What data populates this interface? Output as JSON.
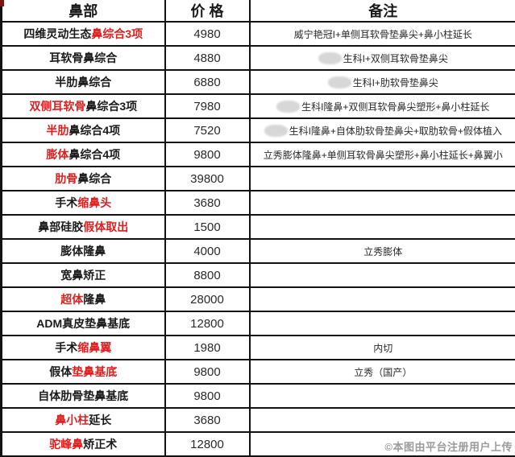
{
  "colors": {
    "accent_red": "#dd1f1f",
    "text_black": "#1a1a1a",
    "border_black": "#121212",
    "censor_gray": "#d7d7d7",
    "watermark_gray": "#9b9b9b"
  },
  "watermark_text": "©本图由平台注册用户上传",
  "table": {
    "headers": {
      "col1": "鼻部",
      "col2": "价 格",
      "col3": "备注"
    },
    "rows": [
      {
        "name_segments": [
          {
            "text": "四维灵动生态",
            "red": false
          },
          {
            "text": "鼻综合3项",
            "red": true
          }
        ],
        "price": "4980",
        "remark": "威宁艳冠I+单侧耳软骨垫鼻尖+鼻小柱延长",
        "remark_censored": false
      },
      {
        "name_segments": [
          {
            "text": "耳软骨鼻综合",
            "red": false
          }
        ],
        "price": "4880",
        "remark": "生科I+双侧耳软骨垫鼻尖",
        "remark_censored": true
      },
      {
        "name_segments": [
          {
            "text": "半肋鼻综合",
            "red": false
          }
        ],
        "price": "6880",
        "remark": "生科I+肋软骨垫鼻尖",
        "remark_censored": true
      },
      {
        "name_segments": [
          {
            "text": "双侧耳软骨",
            "red": true
          },
          {
            "text": "鼻综合3项",
            "red": false
          }
        ],
        "price": "7980",
        "remark": "生科I隆鼻+双侧耳软骨鼻尖塑形+鼻小柱延长",
        "remark_censored": true
      },
      {
        "name_segments": [
          {
            "text": "半肋",
            "red": true
          },
          {
            "text": "鼻综合4项",
            "red": false
          }
        ],
        "price": "7520",
        "remark": "生科I隆鼻+自体肋软骨垫鼻尖+取肋软骨+假体植入",
        "remark_censored": true
      },
      {
        "name_segments": [
          {
            "text": "膨体",
            "red": true
          },
          {
            "text": "鼻综合4项",
            "red": false
          }
        ],
        "price": "9800",
        "remark": "立秀膨体隆鼻+单侧耳软骨鼻尖塑形+鼻小柱延长+鼻翼小",
        "remark_censored": false
      },
      {
        "name_segments": [
          {
            "text": "肋骨",
            "red": true
          },
          {
            "text": "鼻综合",
            "red": false
          }
        ],
        "price": "39800",
        "remark": "",
        "remark_censored": false
      },
      {
        "name_segments": [
          {
            "text": "手术",
            "red": false
          },
          {
            "text": "缩鼻头",
            "red": true
          }
        ],
        "price": "3680",
        "remark": "",
        "remark_censored": false
      },
      {
        "name_segments": [
          {
            "text": "鼻部硅胶",
            "red": false
          },
          {
            "text": "假体取出",
            "red": true
          }
        ],
        "price": "1500",
        "remark": "",
        "remark_censored": false
      },
      {
        "name_segments": [
          {
            "text": "膨体隆鼻",
            "red": false
          }
        ],
        "price": "4000",
        "remark": "立秀膨体",
        "remark_censored": false
      },
      {
        "name_segments": [
          {
            "text": "宽鼻矫正",
            "red": false
          }
        ],
        "price": "8800",
        "remark": "",
        "remark_censored": false
      },
      {
        "name_segments": [
          {
            "text": "超体",
            "red": true
          },
          {
            "text": "隆鼻",
            "red": false
          }
        ],
        "price": "28000",
        "remark": "",
        "remark_censored": false
      },
      {
        "name_segments": [
          {
            "text": "ADM真皮垫鼻基底",
            "red": false
          }
        ],
        "price": "12800",
        "remark": "",
        "remark_censored": false
      },
      {
        "name_segments": [
          {
            "text": "手术",
            "red": false
          },
          {
            "text": "缩鼻翼",
            "red": true
          }
        ],
        "price": "1980",
        "remark": "内切",
        "remark_censored": false
      },
      {
        "name_segments": [
          {
            "text": "假体",
            "red": false
          },
          {
            "text": "垫鼻基底",
            "red": true
          }
        ],
        "price": "9800",
        "remark": "立秀（国产）",
        "remark_censored": false
      },
      {
        "name_segments": [
          {
            "text": "自体肋骨垫鼻基底",
            "red": false
          }
        ],
        "price": "9800",
        "remark": "",
        "remark_censored": false
      },
      {
        "name_segments": [
          {
            "text": "鼻小柱",
            "red": true
          },
          {
            "text": "延长",
            "red": false
          }
        ],
        "price": "3680",
        "remark": "",
        "remark_censored": false
      },
      {
        "name_segments": [
          {
            "text": "驼峰鼻",
            "red": true
          },
          {
            "text": "矫正术",
            "red": false
          }
        ],
        "price": "12800",
        "remark": "",
        "remark_censored": false
      }
    ]
  }
}
